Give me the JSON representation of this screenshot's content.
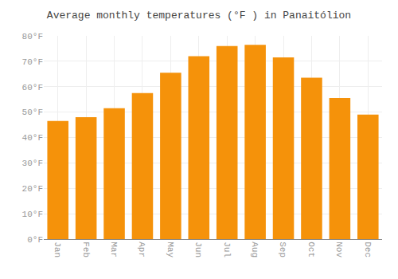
{
  "chart_data": {
    "type": "bar",
    "title": "Average monthly temperatures (°F ) in Panaitólion",
    "categories": [
      "Jan",
      "Feb",
      "Mar",
      "Apr",
      "May",
      "Jun",
      "Jul",
      "Aug",
      "Sep",
      "Oct",
      "Nov",
      "Dec"
    ],
    "values": [
      46.5,
      48.0,
      51.5,
      57.5,
      65.5,
      72.0,
      76.0,
      76.5,
      71.5,
      63.5,
      55.5,
      49.0
    ],
    "color": "#F5920A",
    "ylim": [
      0,
      80
    ],
    "yticks": [
      {
        "value": 0,
        "label": "0°F"
      },
      {
        "value": 10,
        "label": "10°F"
      },
      {
        "value": 20,
        "label": "20°F"
      },
      {
        "value": 30,
        "label": "30°F"
      },
      {
        "value": 40,
        "label": "40°F"
      },
      {
        "value": 50,
        "label": "50°F"
      },
      {
        "value": 60,
        "label": "60°F"
      },
      {
        "value": 70,
        "label": "70°F"
      },
      {
        "value": 80,
        "label": "80°F"
      }
    ],
    "grid": true
  }
}
